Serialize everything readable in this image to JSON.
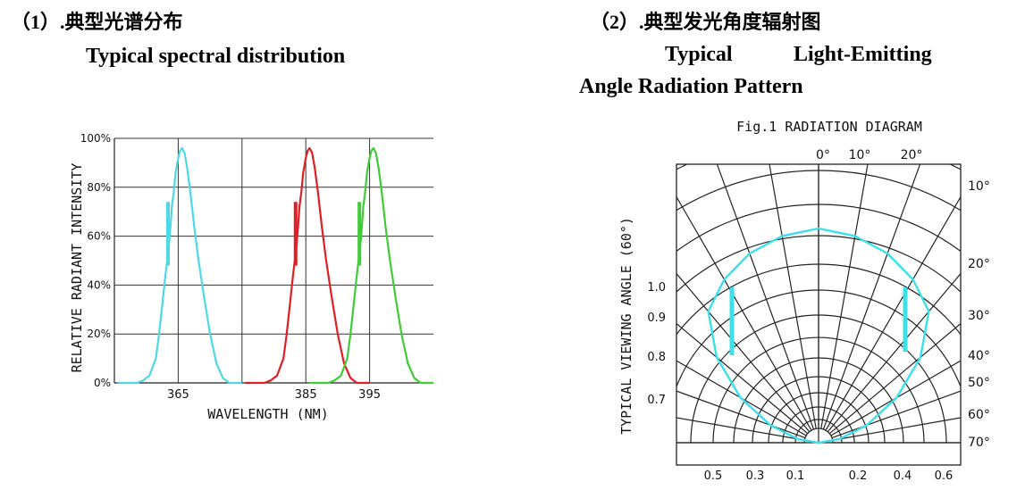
{
  "headings": {
    "left_title": "（1）.典型光谱分布",
    "left_subtitle": "Typical spectral distribution",
    "right_title": "（2）.典型发光角度辐射图",
    "right_subtitle_line1_a": "Typical",
    "right_subtitle_line1_b": "Light-Emitting",
    "right_subtitle_line2": "Angle Radiation Pattern"
  },
  "chart_data": [
    {
      "type": "line",
      "title": "Typical spectral distribution",
      "xlabel": "WAVELENGTH (NM)",
      "ylabel": "RELATIVE RADIANT INTENSITY",
      "xlim": [
        355,
        405
      ],
      "ylim": [
        0,
        100
      ],
      "x_ticks": [
        "365",
        "385",
        "395"
      ],
      "x_tick_values": [
        365,
        385,
        395
      ],
      "y_ticks": [
        "0%",
        "20%",
        "40%",
        "60%",
        "80%",
        "100%"
      ],
      "y_tick_values": [
        0,
        20,
        40,
        60,
        80,
        100
      ],
      "grid": true,
      "series": [
        {
          "name": "365nm",
          "color": "#4fd8e6",
          "peak_x": 365.6,
          "peak_y": 96,
          "x": [
            355.5,
            358.5,
            359.5,
            360.5,
            361.5,
            362.0,
            362.5,
            363.0,
            363.5,
            363.8,
            364.0,
            364.3,
            364.6,
            365.0,
            365.3,
            365.6,
            366.0,
            366.4,
            366.9,
            367.5,
            368.2,
            369.0,
            370.0,
            371.0,
            372.0,
            373.0,
            375.0
          ],
          "y": [
            0,
            0,
            1,
            3,
            10,
            20,
            32,
            44,
            55,
            64,
            72,
            78,
            86,
            92,
            95,
            96,
            94,
            88,
            78,
            64,
            50,
            36,
            20,
            8,
            2,
            0,
            0
          ]
        },
        {
          "name": "385nm",
          "color": "#dd1f26",
          "peak_x": 385.6,
          "peak_y": 96,
          "x": [
            375.5,
            378.5,
            379.5,
            380.5,
            381.5,
            382.0,
            382.5,
            383.0,
            383.5,
            383.8,
            384.0,
            384.3,
            384.6,
            385.0,
            385.3,
            385.6,
            386.0,
            386.4,
            386.9,
            387.5,
            388.2,
            389.0,
            390.0,
            391.0,
            392.0,
            393.0,
            395.0
          ],
          "y": [
            0,
            0,
            1,
            3,
            10,
            20,
            32,
            44,
            55,
            64,
            72,
            78,
            86,
            92,
            95,
            96,
            94,
            88,
            78,
            64,
            50,
            36,
            20,
            8,
            2,
            0,
            0
          ]
        },
        {
          "name": "395nm",
          "color": "#3fcc36",
          "peak_x": 395.6,
          "peak_y": 96,
          "x": [
            385.5,
            388.5,
            389.5,
            390.5,
            391.5,
            392.0,
            392.5,
            393.0,
            393.5,
            393.8,
            394.0,
            394.3,
            394.6,
            395.0,
            395.3,
            395.6,
            396.0,
            396.4,
            396.9,
            397.5,
            398.2,
            399.0,
            400.0,
            401.0,
            402.0,
            403.0,
            405.0
          ],
          "y": [
            0,
            0,
            1,
            3,
            10,
            20,
            32,
            44,
            55,
            64,
            72,
            78,
            86,
            92,
            95,
            96,
            94,
            88,
            78,
            64,
            50,
            36,
            20,
            8,
            2,
            0,
            0
          ]
        }
      ],
      "legend": "none"
    },
    {
      "type": "polar",
      "title": "Fig.1 RADIATION DIAGRAM",
      "ylabel": "TYPICAL VIEWING ANGLE (60°)",
      "top_angle_labels": [
        "0°",
        "10°",
        "20°"
      ],
      "right_angle_labels": [
        "10°",
        "20°",
        "30°",
        "40°",
        "50°",
        "60°",
        "70°"
      ],
      "left_intensity_labels": [
        "1.0",
        "0.9",
        "0.8",
        "0.7"
      ],
      "bottom_labels": [
        "0.5",
        "0.3",
        "0.1",
        "0.2",
        "0.4",
        "0.6"
      ],
      "series": [
        {
          "name": "radiation",
          "color": "#3ae0ea",
          "angles_deg": [
            0,
            10,
            20,
            30,
            40,
            50,
            60,
            70,
            80,
            90
          ],
          "relative_intensity": [
            1.0,
            0.98,
            0.94,
            0.88,
            0.8,
            0.62,
            0.42,
            0.24,
            0.1,
            0.0
          ]
        }
      ]
    }
  ]
}
